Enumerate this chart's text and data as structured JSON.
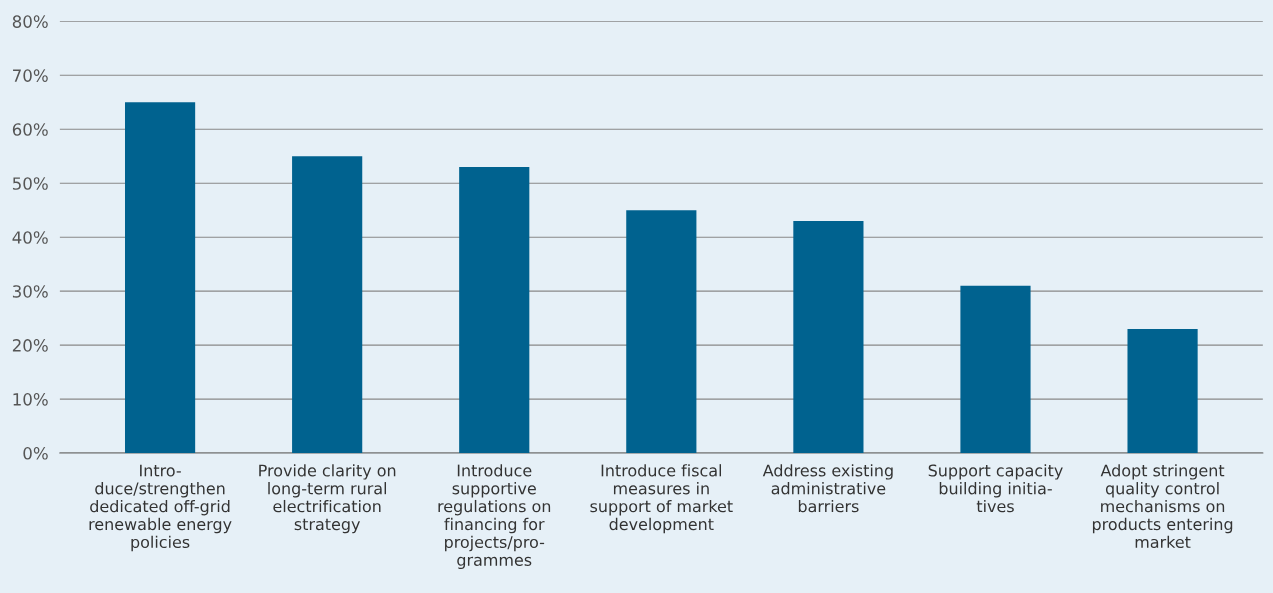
{
  "chart_data": {
    "type": "bar",
    "categories": [
      "Intro-\nduce/strengthen\ndedicated off-grid\nrenewable energy\npolicies",
      "Provide clarity on\nlong-term rural\nelectrification\nstrategy",
      "Introduce\nsupportive\nregulations on\nfinancing for\nprojects/pro-\ngrammes",
      "Introduce fiscal\nmeasures in\nsupport of market\ndevelopment",
      "Address existing\nadministrative\nbarriers",
      "Support capacity\nbuilding initia-\ntives",
      "Adopt stringent\nquality control\nmechanisms on\nproducts entering\nmarket"
    ],
    "values": [
      65,
      55,
      53,
      45,
      43,
      31,
      23
    ],
    "color": "#00628f",
    "ylim": [
      0,
      80
    ],
    "yticks": [
      {
        "value": 0,
        "label": "0%"
      },
      {
        "value": 10,
        "label": "10%"
      },
      {
        "value": 20,
        "label": "20%"
      },
      {
        "value": 30,
        "label": "30%"
      },
      {
        "value": 40,
        "label": "40%"
      },
      {
        "value": 50,
        "label": "50%"
      },
      {
        "value": 60,
        "label": "60%"
      },
      {
        "value": 70,
        "label": "70%"
      },
      {
        "value": 80,
        "label": "80%"
      }
    ],
    "grid": "y"
  }
}
